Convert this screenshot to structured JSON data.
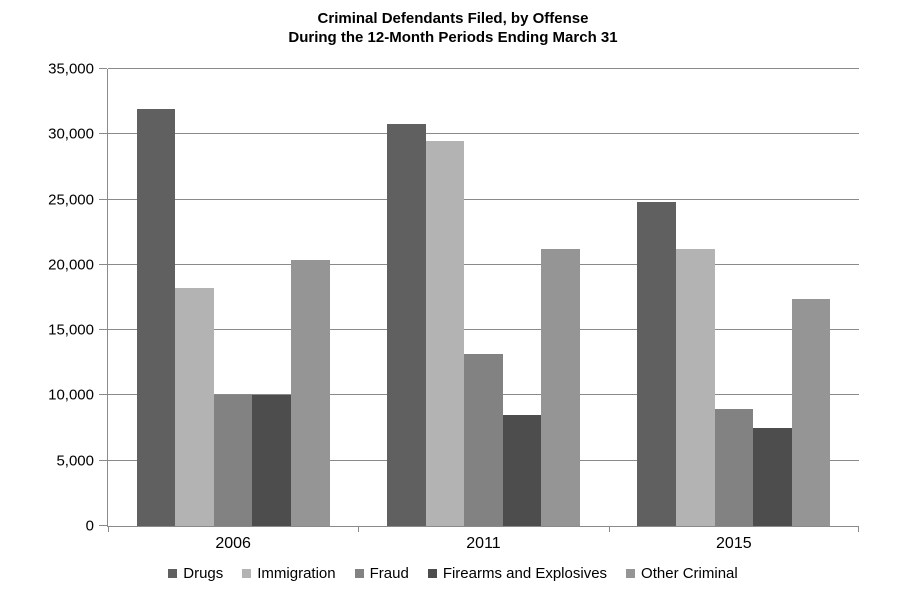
{
  "title": {
    "line1": "Criminal Defendants Filed, by Offense",
    "line2": "During the 12-Month Periods Ending March 31"
  },
  "chart_data": {
    "type": "bar",
    "title": "Criminal Defendants Filed, by Offense During the 12-Month Periods Ending March 31",
    "categories": [
      "2006",
      "2011",
      "2015"
    ],
    "series": [
      {
        "name": "Drugs",
        "color": "#606060",
        "values": [
          31900,
          30800,
          24800
        ]
      },
      {
        "name": "Immigration",
        "color": "#B3B3B3",
        "values": [
          18200,
          29500,
          21200
        ]
      },
      {
        "name": "Fraud",
        "color": "#828282",
        "values": [
          10000,
          13200,
          9000
        ]
      },
      {
        "name": "Firearms and Explosives",
        "color": "#4D4D4D",
        "values": [
          10000,
          8500,
          7500
        ]
      },
      {
        "name": "Other Criminal",
        "color": "#959595",
        "values": [
          20400,
          21200,
          17400
        ]
      }
    ],
    "xlabel": "",
    "ylabel": "",
    "ylim": [
      0,
      35000
    ],
    "y_tick_step": 5000,
    "y_tick_labels": [
      "0",
      "5,000",
      "10,000",
      "15,000",
      "20,000",
      "25,000",
      "30,000",
      "35,000"
    ],
    "grid": "horizontal",
    "legend_position": "bottom",
    "axis_color": "#8A8A8A",
    "gridline_color": "#8A8A8A"
  }
}
